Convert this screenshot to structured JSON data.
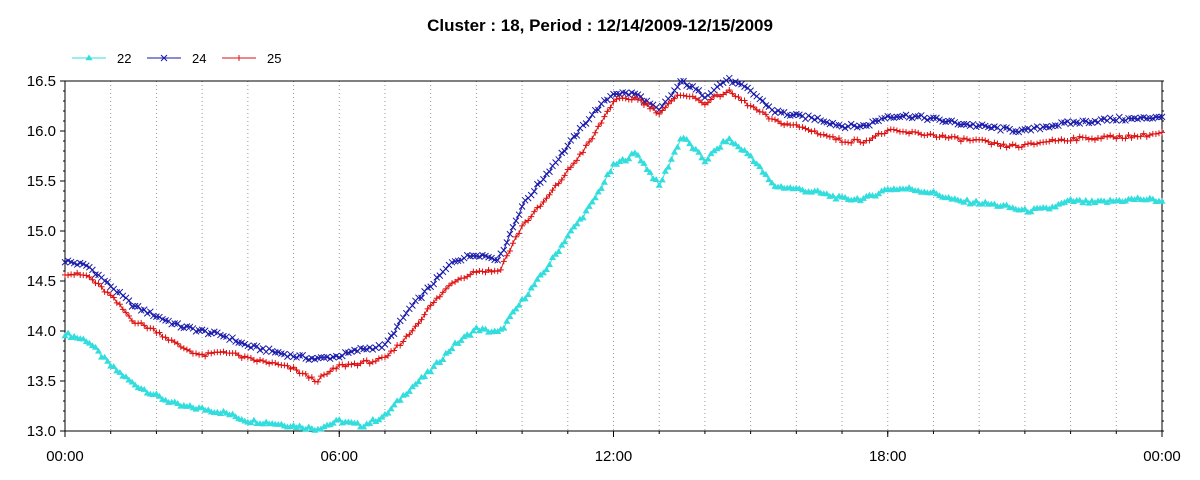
{
  "chart_data": {
    "type": "line",
    "title": "Cluster : 18, Period : 12/14/2009-12/15/2009",
    "xlabel": "",
    "ylabel": "",
    "x_ticks": [
      "00:00",
      "06:00",
      "12:00",
      "18:00",
      "00:00"
    ],
    "x_range_hours": [
      0,
      24
    ],
    "y_ticks": [
      "13.0",
      "13.5",
      "14.0",
      "14.5",
      "15.0",
      "15.5",
      "16.0",
      "16.5"
    ],
    "ylim": [
      13.0,
      16.5
    ],
    "grid": "dotted vertical lines every hour",
    "legend_position": "top-left",
    "x": [
      0,
      0.5,
      1,
      1.5,
      2,
      2.5,
      3,
      3.5,
      4,
      4.5,
      5,
      5.5,
      6,
      6.5,
      7,
      7.5,
      8,
      8.5,
      9,
      9.5,
      10,
      10.5,
      11,
      11.5,
      12,
      12.5,
      13,
      13.5,
      14,
      14.5,
      15,
      15.5,
      16,
      16.5,
      17,
      17.5,
      18,
      18.5,
      19,
      19.5,
      20,
      20.5,
      21,
      21.5,
      22,
      22.5,
      23,
      23.5,
      24
    ],
    "series": [
      {
        "name": "22",
        "color": "#33dddd",
        "marker": "triangle",
        "values": [
          13.97,
          13.9,
          13.65,
          13.47,
          13.35,
          13.25,
          13.22,
          13.18,
          13.1,
          13.08,
          13.05,
          13.02,
          13.1,
          13.05,
          13.15,
          13.4,
          13.6,
          13.85,
          14.02,
          13.98,
          14.3,
          14.6,
          14.95,
          15.25,
          15.65,
          15.78,
          15.45,
          15.95,
          15.7,
          15.92,
          15.75,
          15.45,
          15.42,
          15.38,
          15.32,
          15.32,
          15.42,
          15.42,
          15.38,
          15.3,
          15.28,
          15.25,
          15.2,
          15.22,
          15.3,
          15.28,
          15.3,
          15.32,
          15.3
        ]
      },
      {
        "name": "24",
        "color": "#1a1aaa",
        "marker": "x",
        "values": [
          14.7,
          14.65,
          14.45,
          14.25,
          14.15,
          14.05,
          14.0,
          13.95,
          13.85,
          13.8,
          13.75,
          13.72,
          13.75,
          13.82,
          13.85,
          14.2,
          14.45,
          14.7,
          14.77,
          14.72,
          15.25,
          15.55,
          15.85,
          16.15,
          16.38,
          16.37,
          16.2,
          16.5,
          16.35,
          16.52,
          16.4,
          16.2,
          16.15,
          16.12,
          16.05,
          16.05,
          16.15,
          16.15,
          16.12,
          16.08,
          16.05,
          16.02,
          16.0,
          16.05,
          16.08,
          16.1,
          16.12,
          16.12,
          16.15
        ]
      },
      {
        "name": "25",
        "color": "#dd1111",
        "marker": "plus",
        "values": [
          14.58,
          14.55,
          14.35,
          14.1,
          14.0,
          13.85,
          13.75,
          13.8,
          13.72,
          13.68,
          13.62,
          13.5,
          13.65,
          13.68,
          13.72,
          13.95,
          14.25,
          14.5,
          14.6,
          14.6,
          15.05,
          15.3,
          15.6,
          15.9,
          16.3,
          16.33,
          16.18,
          16.38,
          16.28,
          16.4,
          16.25,
          16.1,
          16.05,
          15.98,
          15.9,
          15.9,
          16.0,
          15.98,
          15.96,
          15.92,
          15.9,
          15.85,
          15.85,
          15.9,
          15.92,
          15.93,
          15.94,
          15.95,
          15.98
        ]
      }
    ]
  }
}
